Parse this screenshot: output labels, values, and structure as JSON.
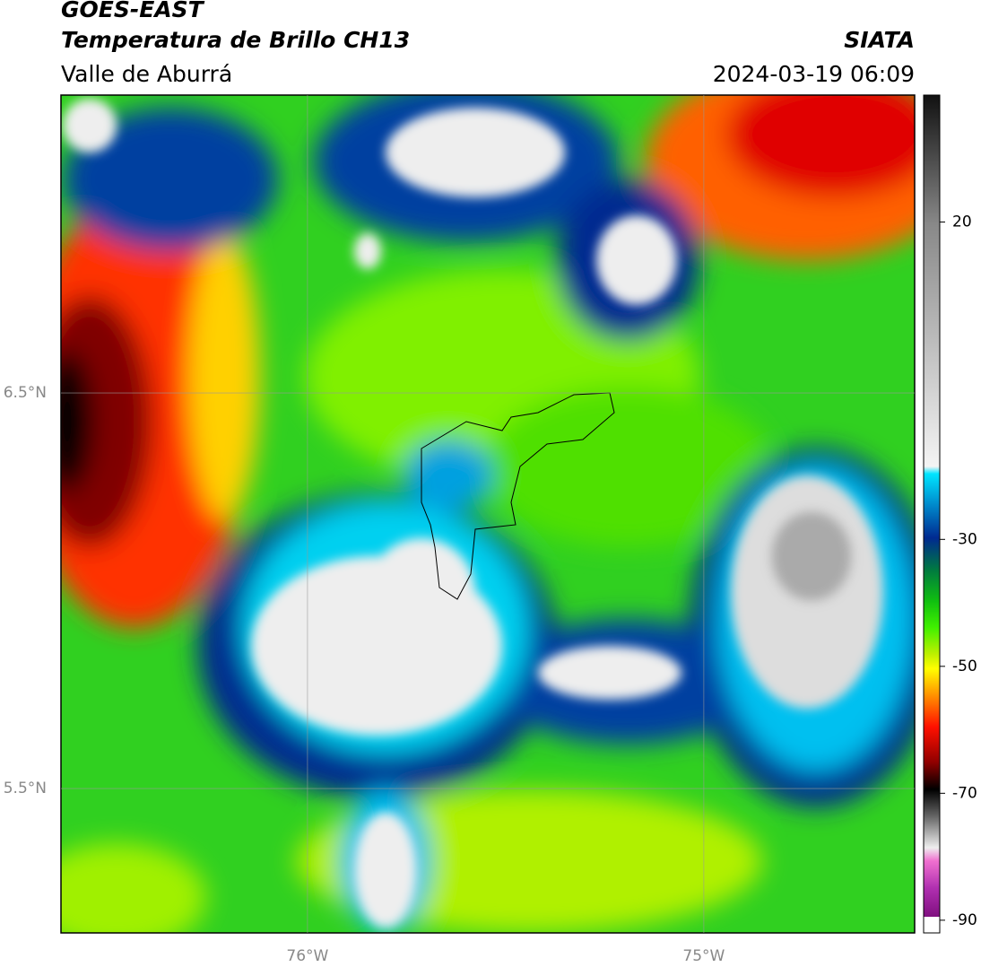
{
  "header": {
    "title": "GOES-EAST",
    "subtitle": "Temperatura de Brillo CH13",
    "region": "Valle de Aburrá",
    "source": "SIATA",
    "datetime": "2024-03-19 06:09"
  },
  "map": {
    "xlim": [
      -76.622,
      -74.468
    ],
    "ylim": [
      5.135,
      7.253
    ],
    "xticks": [
      {
        "value": -76,
        "label": "76°W"
      },
      {
        "value": -75,
        "label": "75°W"
      }
    ],
    "yticks": [
      {
        "value": 6.5,
        "label": "6.5°N"
      },
      {
        "value": 5.5,
        "label": "5.5°N"
      }
    ],
    "grid": true
  },
  "colorbar": {
    "lim": [
      -92,
      40
    ],
    "ticks": [
      20,
      -30,
      -50,
      -70,
      -90
    ]
  }
}
